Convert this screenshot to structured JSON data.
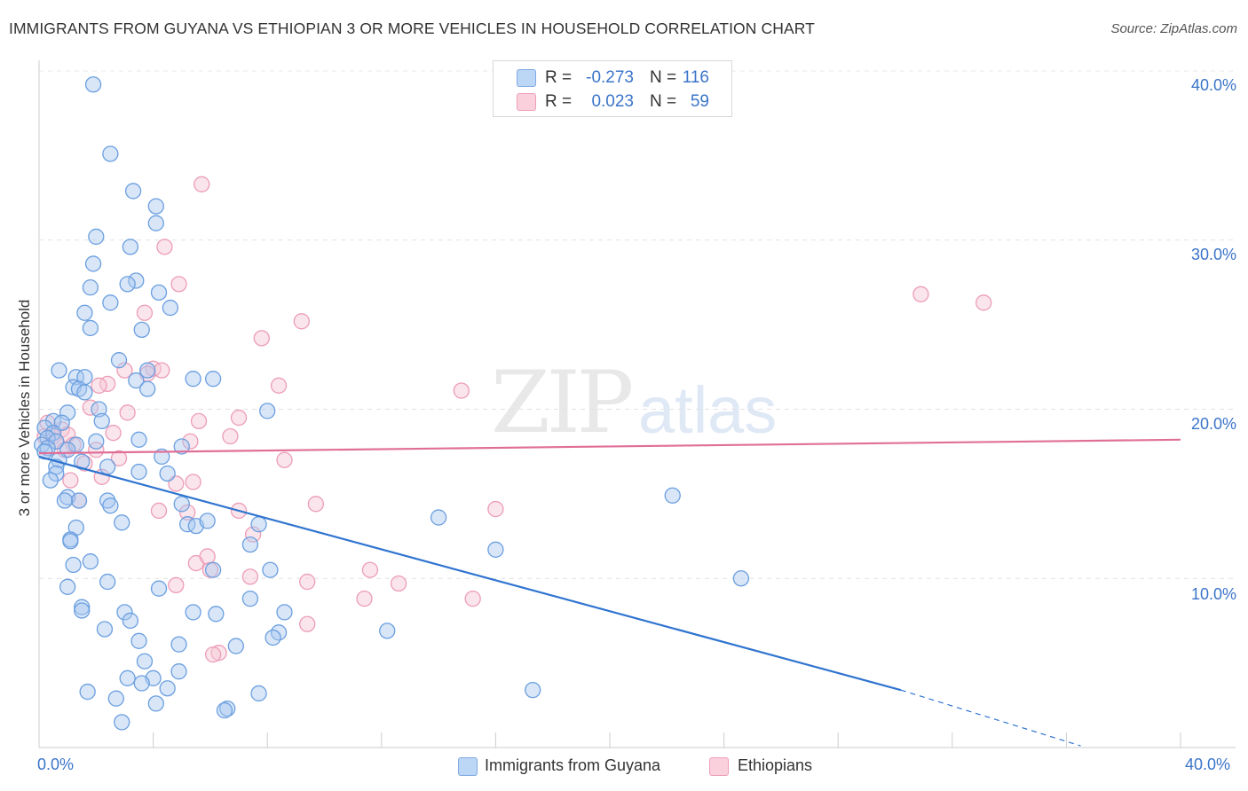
{
  "header": {
    "title": "IMMIGRANTS FROM GUYANA VS ETHIOPIAN 3 OR MORE VEHICLES IN HOUSEHOLD CORRELATION CHART",
    "source": "Source: ZipAtlas.com"
  },
  "watermark": {
    "zip": "ZIP",
    "atlas": "atlas"
  },
  "legend": {
    "rows": [
      {
        "r_label": "R =",
        "r_value": "-0.273",
        "n_label": "N =",
        "n_value": "116",
        "color": "#a8c8f0"
      },
      {
        "r_label": "R =",
        "r_value": "0.023",
        "n_label": "N =",
        "n_value": "59",
        "color": "#f6b8cb"
      }
    ]
  },
  "bottom_legend": {
    "series1": "Immigrants from Guyana",
    "series2": "Ethiopians"
  },
  "colors": {
    "blue_fill": "#a8c8f0",
    "blue_stroke": "#6b9fe0",
    "blue_line": "#2f74d0",
    "pink_fill": "#f6c6d5",
    "pink_stroke": "#ec9db6",
    "pink_line": "#e06f98",
    "tick_text": "#3a74c9"
  },
  "chart_data": {
    "type": "scatter",
    "title": "IMMIGRANTS FROM GUYANA VS ETHIOPIAN 3 OR MORE VEHICLES IN HOUSEHOLD CORRELATION CHART",
    "xlabel": "",
    "ylabel": "3 or more Vehicles in Household",
    "xlim": [
      0,
      40
    ],
    "ylim": [
      0,
      40
    ],
    "x_tick_labels": [
      "0.0%",
      "40.0%"
    ],
    "y_ticks": [
      10,
      20,
      30,
      40
    ],
    "y_tick_labels": [
      "10.0%",
      "20.0%",
      "30.0%",
      "40.0%"
    ],
    "grid": true,
    "legend_position": "top-center",
    "series": [
      {
        "name": "Immigrants from Guyana",
        "color": "#a8c8f0",
        "points": [
          [
            1.9,
            39.2
          ],
          [
            2.5,
            35.1
          ],
          [
            3.3,
            32.9
          ],
          [
            4.1,
            32.0
          ],
          [
            4.1,
            31.0
          ],
          [
            2.0,
            30.2
          ],
          [
            3.2,
            29.6
          ],
          [
            1.9,
            28.6
          ],
          [
            3.4,
            27.6
          ],
          [
            1.8,
            27.2
          ],
          [
            3.1,
            27.4
          ],
          [
            4.2,
            26.9
          ],
          [
            2.5,
            26.3
          ],
          [
            1.6,
            25.7
          ],
          [
            4.6,
            26.0
          ],
          [
            1.8,
            24.8
          ],
          [
            3.6,
            24.7
          ],
          [
            0.7,
            22.3
          ],
          [
            2.8,
            22.9
          ],
          [
            1.3,
            21.9
          ],
          [
            1.6,
            21.9
          ],
          [
            3.4,
            21.7
          ],
          [
            3.8,
            22.3
          ],
          [
            5.4,
            21.8
          ],
          [
            6.1,
            21.8
          ],
          [
            1.2,
            21.3
          ],
          [
            1.4,
            21.2
          ],
          [
            1.6,
            21.0
          ],
          [
            3.8,
            21.2
          ],
          [
            1.0,
            19.8
          ],
          [
            2.1,
            20.0
          ],
          [
            8.0,
            19.9
          ],
          [
            0.5,
            19.3
          ],
          [
            0.8,
            19.2
          ],
          [
            2.2,
            19.3
          ],
          [
            0.2,
            18.9
          ],
          [
            0.5,
            18.6
          ],
          [
            0.3,
            18.3
          ],
          [
            0.6,
            18.1
          ],
          [
            0.1,
            17.9
          ],
          [
            0.3,
            17.7
          ],
          [
            0.2,
            17.5
          ],
          [
            1.3,
            17.9
          ],
          [
            2.0,
            18.1
          ],
          [
            3.5,
            18.2
          ],
          [
            1.0,
            17.6
          ],
          [
            5.0,
            17.8
          ],
          [
            0.7,
            17.0
          ],
          [
            1.5,
            16.9
          ],
          [
            0.6,
            16.6
          ],
          [
            2.4,
            16.6
          ],
          [
            4.3,
            17.2
          ],
          [
            0.6,
            16.2
          ],
          [
            3.5,
            16.3
          ],
          [
            4.5,
            16.2
          ],
          [
            0.4,
            15.8
          ],
          [
            1.0,
            14.8
          ],
          [
            1.4,
            14.6
          ],
          [
            2.4,
            14.6
          ],
          [
            0.9,
            14.6
          ],
          [
            2.5,
            14.3
          ],
          [
            5.0,
            14.4
          ],
          [
            14.0,
            13.6
          ],
          [
            22.2,
            14.9
          ],
          [
            2.9,
            13.3
          ],
          [
            5.2,
            13.2
          ],
          [
            5.5,
            13.1
          ],
          [
            5.9,
            13.4
          ],
          [
            7.7,
            13.2
          ],
          [
            1.3,
            13.0
          ],
          [
            16.0,
            11.7
          ],
          [
            1.1,
            12.3
          ],
          [
            1.1,
            12.2
          ],
          [
            7.4,
            12.0
          ],
          [
            1.8,
            11.0
          ],
          [
            1.2,
            10.8
          ],
          [
            8.1,
            10.5
          ],
          [
            6.1,
            10.5
          ],
          [
            2.4,
            9.8
          ],
          [
            1.0,
            9.5
          ],
          [
            4.2,
            9.4
          ],
          [
            24.6,
            10.0
          ],
          [
            7.4,
            8.8
          ],
          [
            1.5,
            8.3
          ],
          [
            1.5,
            8.1
          ],
          [
            3.0,
            8.0
          ],
          [
            5.4,
            8.0
          ],
          [
            6.2,
            7.9
          ],
          [
            8.6,
            8.0
          ],
          [
            3.2,
            7.5
          ],
          [
            2.3,
            7.0
          ],
          [
            12.2,
            6.9
          ],
          [
            8.4,
            6.8
          ],
          [
            3.5,
            6.3
          ],
          [
            8.2,
            6.5
          ],
          [
            4.9,
            6.1
          ],
          [
            6.9,
            6.0
          ],
          [
            3.7,
            5.1
          ],
          [
            4.9,
            4.5
          ],
          [
            3.1,
            4.1
          ],
          [
            4.0,
            4.1
          ],
          [
            3.6,
            3.8
          ],
          [
            4.5,
            3.5
          ],
          [
            1.7,
            3.3
          ],
          [
            7.7,
            3.2
          ],
          [
            17.3,
            3.4
          ],
          [
            2.7,
            2.9
          ],
          [
            4.1,
            2.6
          ],
          [
            6.6,
            2.3
          ],
          [
            6.5,
            2.2
          ],
          [
            2.9,
            1.5
          ]
        ],
        "trend": {
          "x": [
            0,
            30.2
          ],
          "y": [
            17.2,
            3.4
          ],
          "dashed_to": [
            36.5,
            0.1
          ]
        }
      },
      {
        "name": "Ethiopians",
        "color": "#f6b8cb",
        "points": [
          [
            5.7,
            33.3
          ],
          [
            4.4,
            29.6
          ],
          [
            4.9,
            27.4
          ],
          [
            3.7,
            25.7
          ],
          [
            30.9,
            26.8
          ],
          [
            33.1,
            26.3
          ],
          [
            9.2,
            25.2
          ],
          [
            7.8,
            24.2
          ],
          [
            4.0,
            22.4
          ],
          [
            3.0,
            22.3
          ],
          [
            3.8,
            22.1
          ],
          [
            4.3,
            22.3
          ],
          [
            2.4,
            21.5
          ],
          [
            8.4,
            21.4
          ],
          [
            14.8,
            21.1
          ],
          [
            2.1,
            21.4
          ],
          [
            1.8,
            20.1
          ],
          [
            3.1,
            19.8
          ],
          [
            7.0,
            19.5
          ],
          [
            5.6,
            19.3
          ],
          [
            0.3,
            19.2
          ],
          [
            0.8,
            18.8
          ],
          [
            1.0,
            18.5
          ],
          [
            0.2,
            18.4
          ],
          [
            0.5,
            18.4
          ],
          [
            2.6,
            18.6
          ],
          [
            6.7,
            18.4
          ],
          [
            0.6,
            18.1
          ],
          [
            1.2,
            17.9
          ],
          [
            0.9,
            17.6
          ],
          [
            5.3,
            18.1
          ],
          [
            2.0,
            17.6
          ],
          [
            2.8,
            17.1
          ],
          [
            8.6,
            17.0
          ],
          [
            1.6,
            16.8
          ],
          [
            2.2,
            16.0
          ],
          [
            1.1,
            15.8
          ],
          [
            4.8,
            15.6
          ],
          [
            5.4,
            15.7
          ],
          [
            1.4,
            14.6
          ],
          [
            4.2,
            14.0
          ],
          [
            5.2,
            13.9
          ],
          [
            9.7,
            14.4
          ],
          [
            7.0,
            14.0
          ],
          [
            16.0,
            14.1
          ],
          [
            7.5,
            12.6
          ],
          [
            5.5,
            10.9
          ],
          [
            6.0,
            10.5
          ],
          [
            5.9,
            11.3
          ],
          [
            7.4,
            10.1
          ],
          [
            11.6,
            10.5
          ],
          [
            9.4,
            9.8
          ],
          [
            12.6,
            9.7
          ],
          [
            4.8,
            9.6
          ],
          [
            11.4,
            8.8
          ],
          [
            15.2,
            8.8
          ],
          [
            9.4,
            7.3
          ],
          [
            6.3,
            5.6
          ],
          [
            6.1,
            5.5
          ]
        ],
        "trend": {
          "x": [
            0,
            40
          ],
          "y": [
            17.4,
            18.2
          ]
        }
      }
    ]
  }
}
